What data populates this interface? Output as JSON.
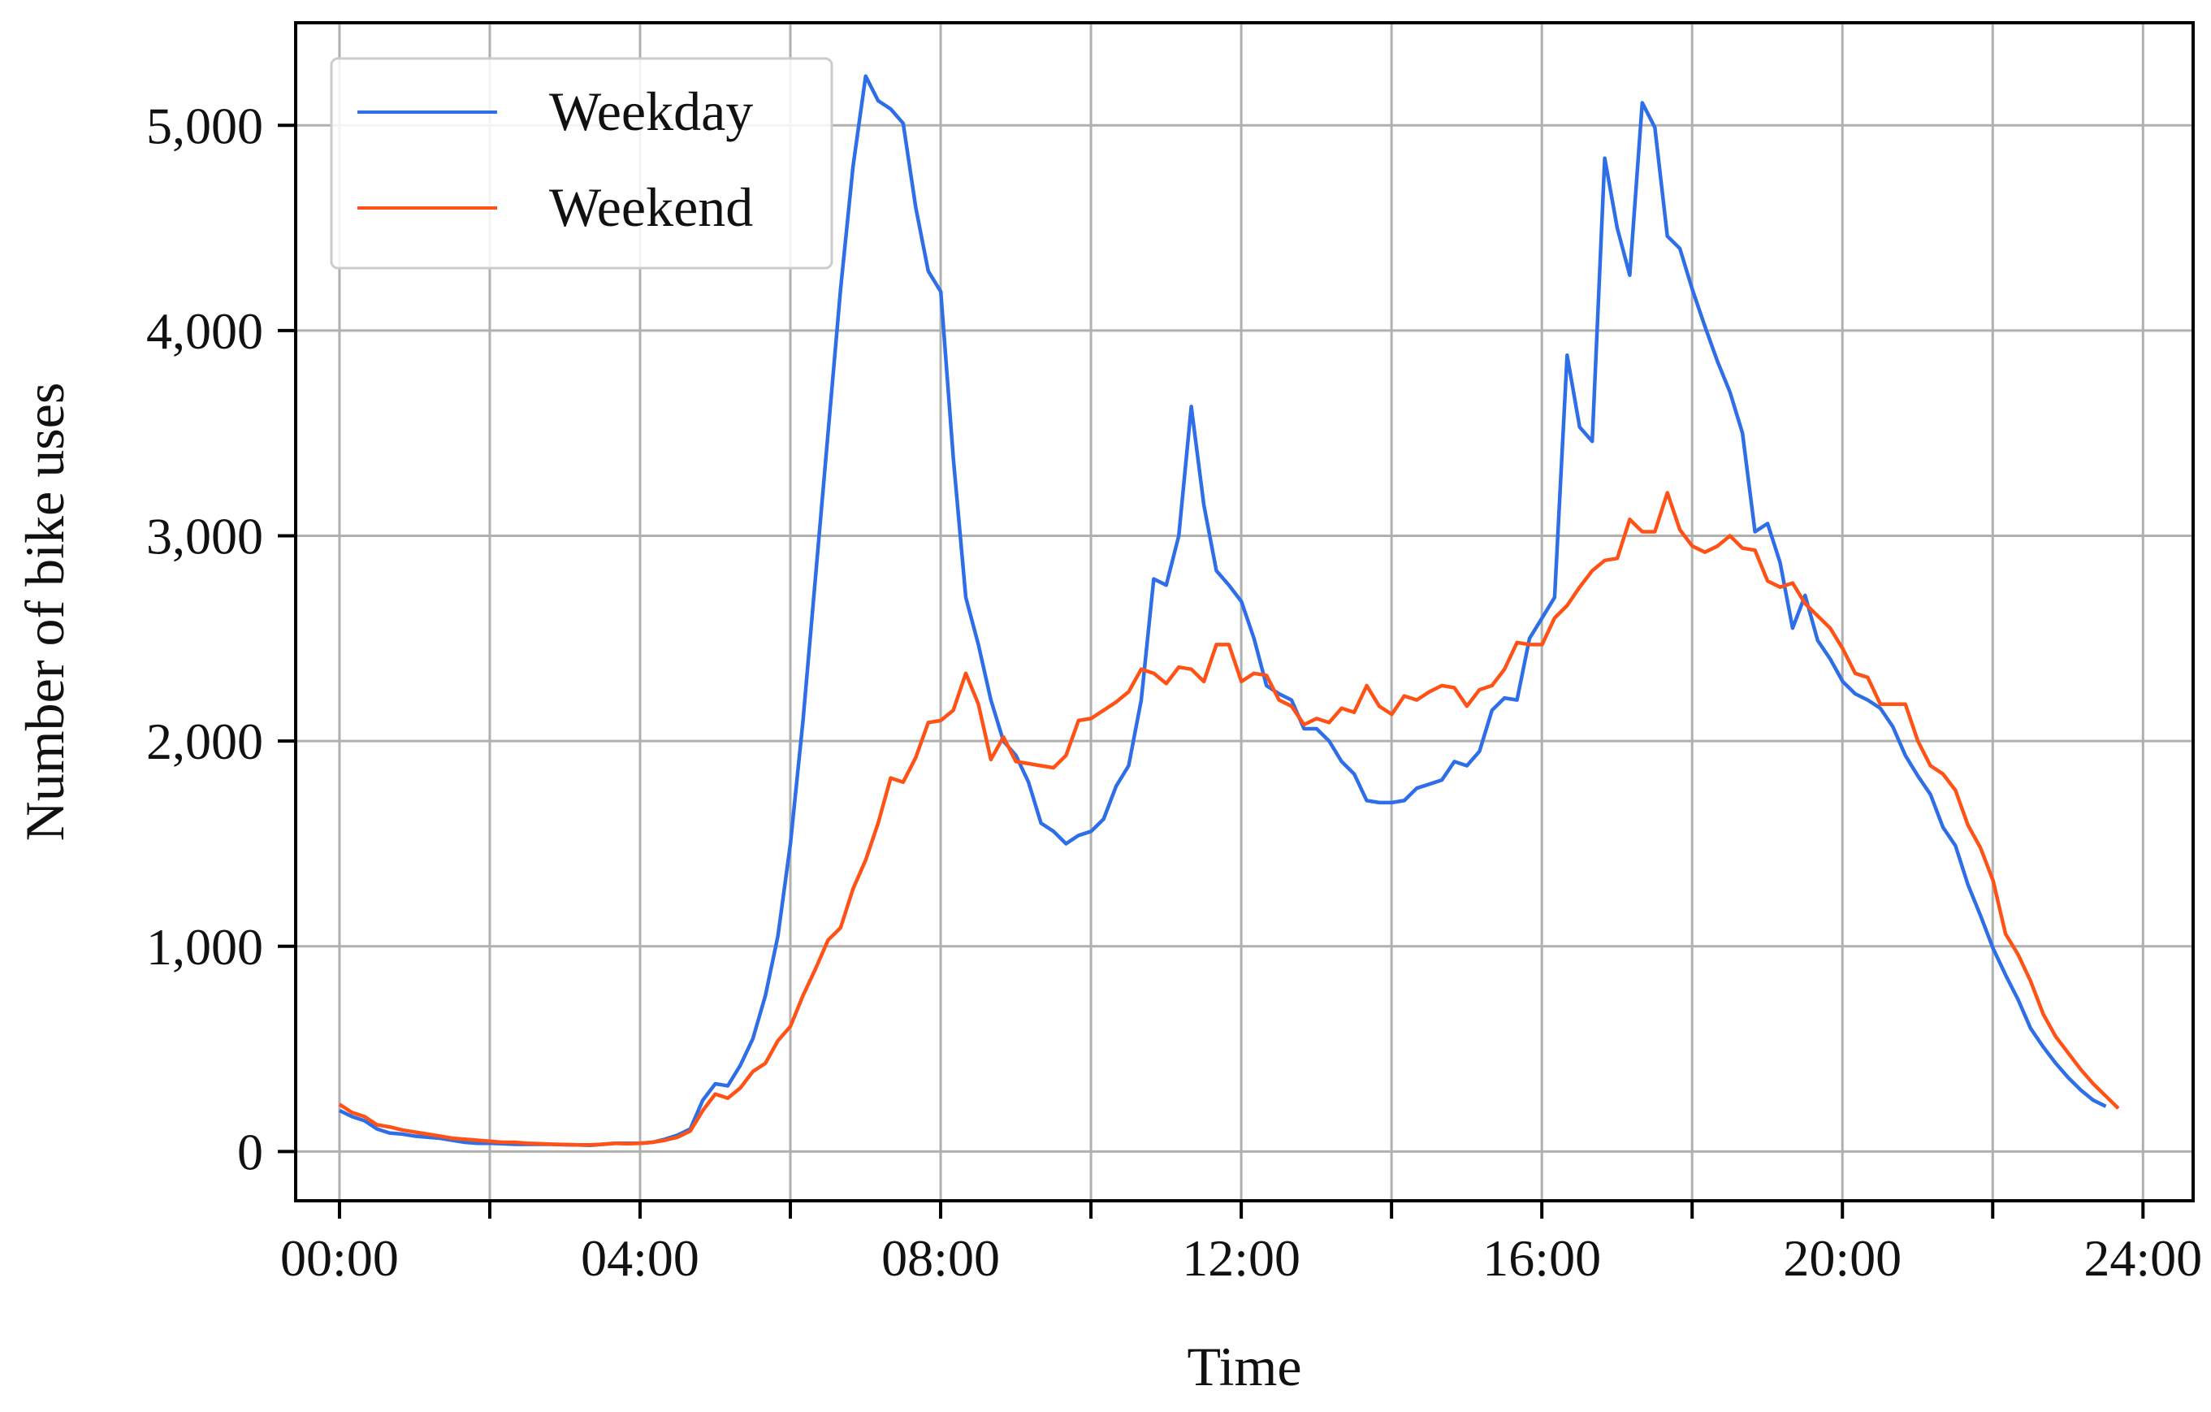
{
  "chart_data": {
    "type": "line",
    "title": "",
    "xlabel": "Time",
    "ylabel": "Number of bike uses",
    "xlim": [
      -0.583,
      24.667
    ],
    "ylim": [
      -240,
      5500
    ],
    "x_ticks": [
      0,
      4,
      8,
      12,
      16,
      20,
      24
    ],
    "x_tick_labels": [
      "00:00",
      "04:00",
      "08:00",
      "12:00",
      "16:00",
      "20:00",
      "24:00"
    ],
    "x_minor_ticks": [
      2,
      6,
      10,
      14,
      18,
      22
    ],
    "y_ticks": [
      0,
      1000,
      2000,
      3000,
      4000,
      5000
    ],
    "y_tick_labels": [
      "0",
      "1,000",
      "2,000",
      "3,000",
      "4,000",
      "5,000"
    ],
    "grid": true,
    "legend_position": "top-left",
    "x_step_hours": 0.1667,
    "series": [
      {
        "name": "Weekday",
        "color": "#2e6ee6",
        "values": [
          200,
          170,
          150,
          110,
          90,
          85,
          75,
          70,
          65,
          55,
          45,
          40,
          40,
          38,
          35,
          35,
          35,
          35,
          33,
          32,
          30,
          35,
          40,
          40,
          40,
          45,
          60,
          80,
          110,
          250,
          330,
          320,
          420,
          550,
          760,
          1050,
          1500,
          2100,
          2800,
          3500,
          4200,
          4800,
          5240,
          5120,
          5080,
          5010,
          4600,
          4290,
          4190,
          3380,
          2700,
          2470,
          2200,
          2000,
          1930,
          1800,
          1600,
          1560,
          1500,
          1540,
          1560,
          1620,
          1780,
          1880,
          2200,
          2790,
          2760,
          3000,
          3630,
          3150,
          2830,
          2760,
          2680,
          2500,
          2270,
          2230,
          2200,
          2060,
          2060,
          2000,
          1900,
          1840,
          1710,
          1700,
          1700,
          1710,
          1770,
          1790,
          1810,
          1900,
          1880,
          1950,
          2150,
          2210,
          2200,
          2500,
          2600,
          2700,
          3880,
          3530,
          3460,
          4840,
          4500,
          4270,
          5110,
          4990,
          4460,
          4400,
          4200,
          4020,
          3850,
          3700,
          3500,
          3020,
          3060,
          2870,
          2550,
          2710,
          2490,
          2400,
          2290,
          2230,
          2200,
          2160,
          2070,
          1930,
          1830,
          1740,
          1580,
          1490,
          1300,
          1150,
          990,
          860,
          740,
          600,
          510,
          430,
          360,
          300,
          250,
          220
        ]
      },
      {
        "name": "Weekend",
        "color": "#ff5216",
        "values": [
          230,
          190,
          170,
          130,
          120,
          105,
          95,
          85,
          75,
          65,
          60,
          55,
          50,
          45,
          45,
          40,
          38,
          35,
          34,
          32,
          32,
          35,
          40,
          38,
          40,
          45,
          55,
          70,
          100,
          200,
          280,
          260,
          310,
          390,
          430,
          540,
          610,
          760,
          890,
          1030,
          1090,
          1280,
          1420,
          1600,
          1820,
          1800,
          1920,
          2090,
          2100,
          2150,
          2330,
          2180,
          1910,
          2020,
          1900,
          1890,
          1880,
          1870,
          1930,
          2100,
          2110,
          2150,
          2190,
          2240,
          2350,
          2330,
          2280,
          2360,
          2350,
          2290,
          2470,
          2470,
          2290,
          2330,
          2320,
          2200,
          2170,
          2080,
          2110,
          2090,
          2160,
          2140,
          2270,
          2170,
          2130,
          2220,
          2200,
          2240,
          2270,
          2260,
          2170,
          2250,
          2270,
          2350,
          2480,
          2470,
          2470,
          2600,
          2660,
          2750,
          2830,
          2880,
          2890,
          3080,
          3020,
          3020,
          3210,
          3030,
          2950,
          2920,
          2950,
          3000,
          2940,
          2930,
          2780,
          2750,
          2770,
          2670,
          2610,
          2550,
          2450,
          2330,
          2310,
          2180,
          2180,
          2180,
          2000,
          1880,
          1840,
          1760,
          1590,
          1480,
          1320,
          1060,
          960,
          830,
          670,
          560,
          480,
          400,
          330,
          270,
          210
        ]
      }
    ]
  }
}
